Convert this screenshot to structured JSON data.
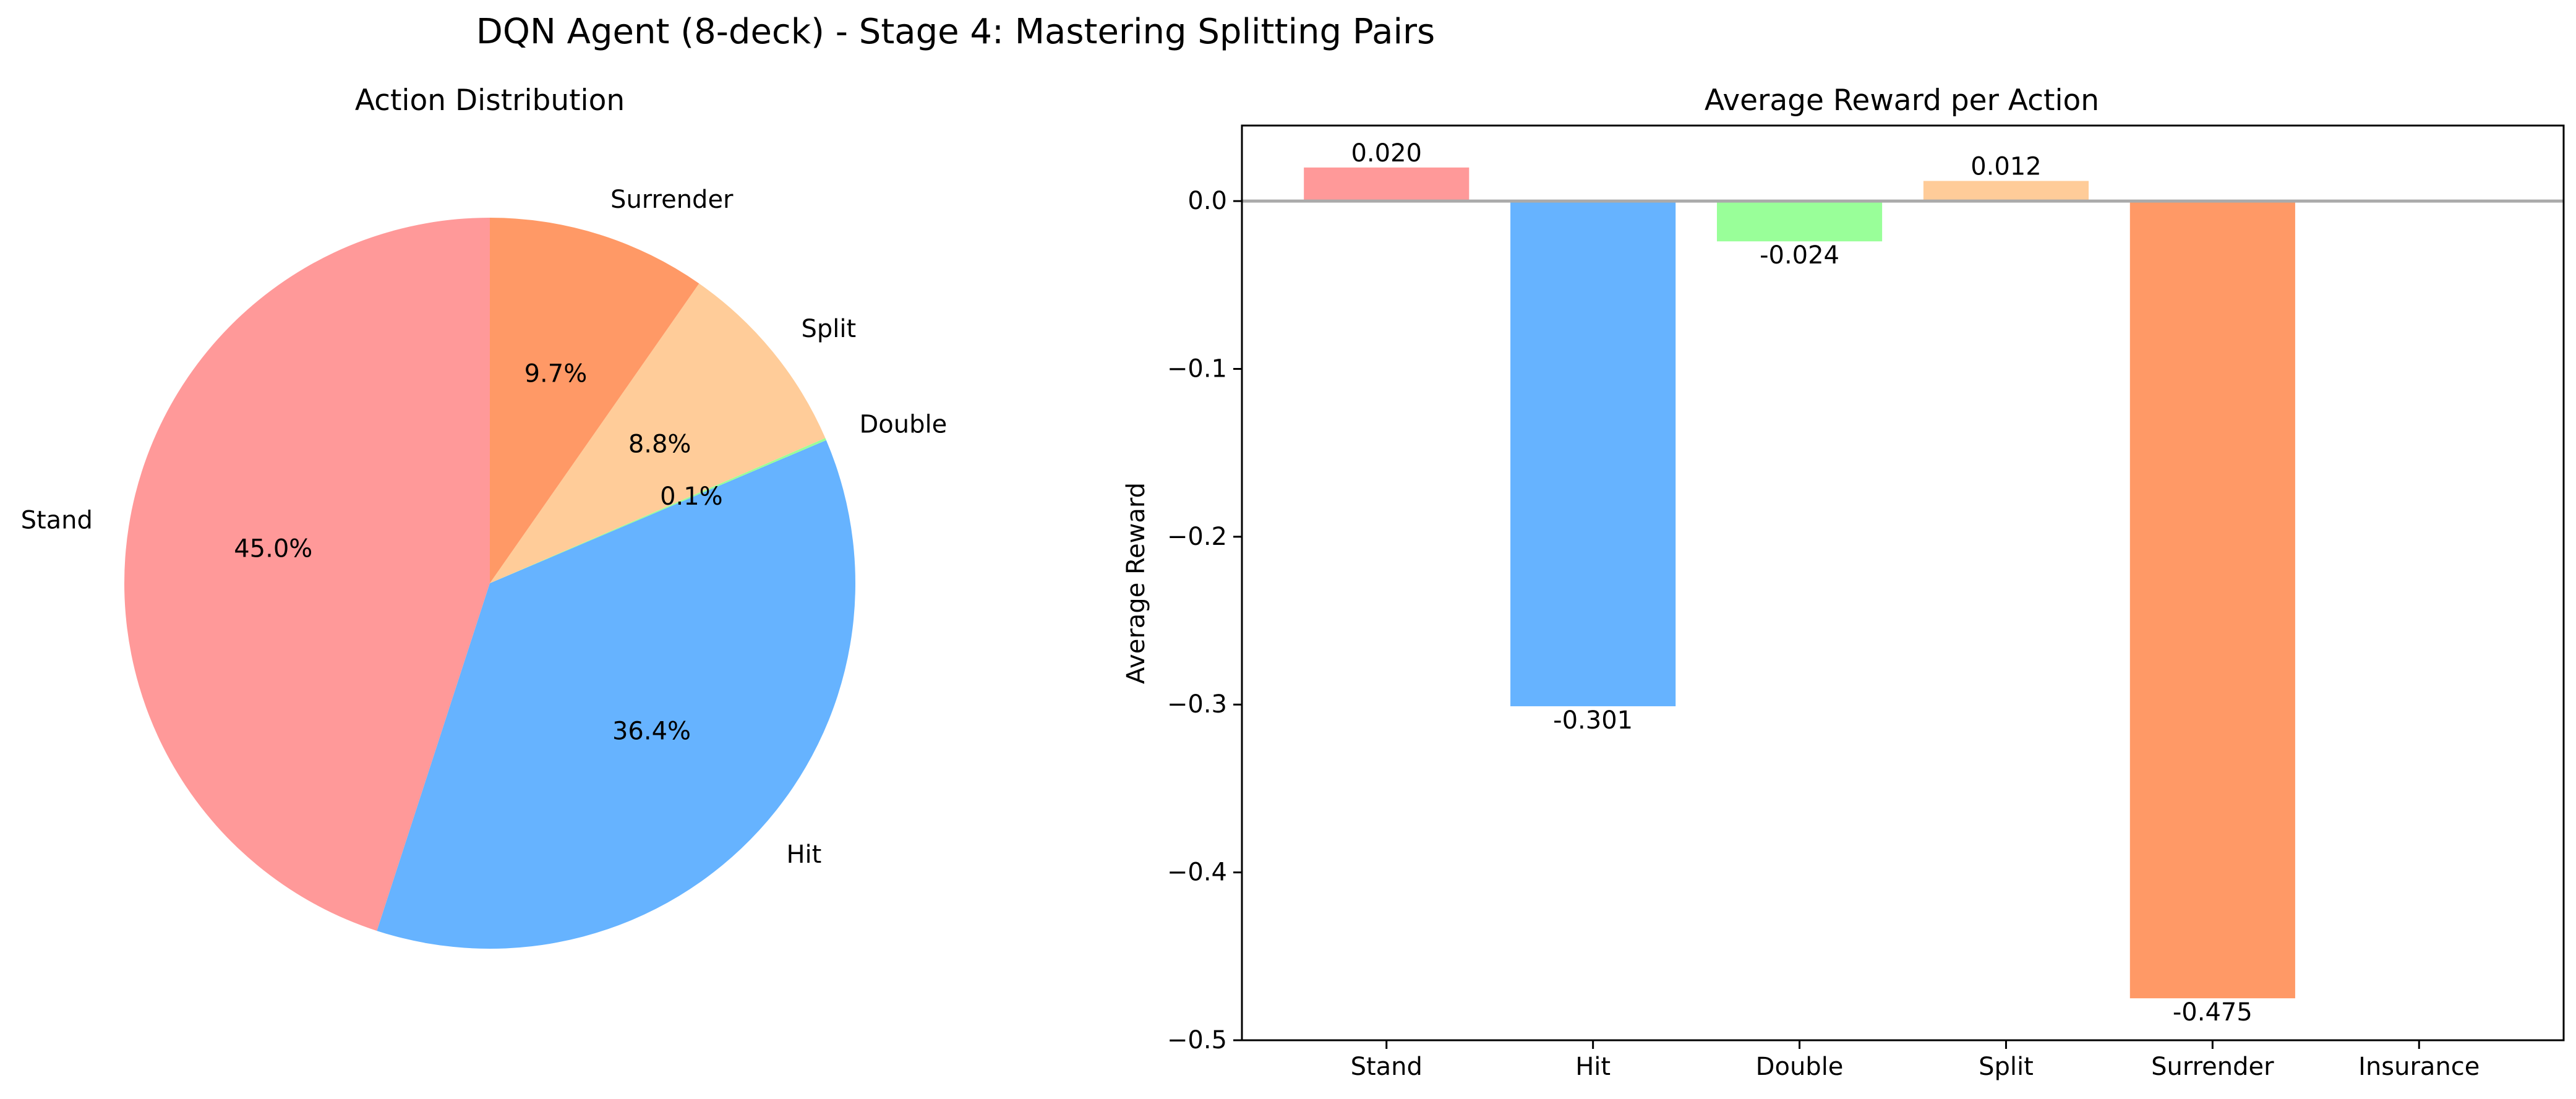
{
  "figure": {
    "title": "DQN Agent (8-deck) - Stage 4: Mastering Splitting Pairs"
  },
  "chart_data": [
    {
      "type": "pie",
      "title": "Action Distribution",
      "start_angle_deg": 90,
      "direction": "counterclockwise",
      "slices": [
        {
          "label": "Stand",
          "percent": 45.0,
          "pct_label": "45.0%",
          "color": "#ff9999"
        },
        {
          "label": "Hit",
          "percent": 36.4,
          "pct_label": "36.4%",
          "color": "#66b3ff"
        },
        {
          "label": "Double",
          "percent": 0.1,
          "pct_label": "0.1%",
          "color": "#99ff99"
        },
        {
          "label": "Split",
          "percent": 8.8,
          "pct_label": "8.8%",
          "color": "#ffcc99"
        },
        {
          "label": "Surrender",
          "percent": 9.7,
          "pct_label": "9.7%",
          "color": "#ff9966"
        }
      ]
    },
    {
      "type": "bar",
      "title": "Average Reward per Action",
      "xlabel": "",
      "ylabel": "Average Reward",
      "ylim": [
        -0.5,
        0.045
      ],
      "yticks": [
        {
          "value": 0.0,
          "label": "0.0"
        },
        {
          "value": -0.1,
          "label": "−0.1"
        },
        {
          "value": -0.2,
          "label": "−0.2"
        },
        {
          "value": -0.3,
          "label": "−0.3"
        },
        {
          "value": -0.4,
          "label": "−0.4"
        },
        {
          "value": -0.5,
          "label": "−0.5"
        }
      ],
      "zero_line_color": "#aaaaaa",
      "categories": [
        "Stand",
        "Hit",
        "Double",
        "Split",
        "Surrender",
        "Insurance"
      ],
      "values": [
        0.02,
        -0.301,
        -0.024,
        0.012,
        -0.475,
        null
      ],
      "value_labels": [
        "0.020",
        "-0.301",
        "-0.024",
        "0.012",
        "-0.475",
        ""
      ],
      "colors": [
        "#ff9999",
        "#66b3ff",
        "#99ff99",
        "#ffcc99",
        "#ff9966",
        "#c2c2f0"
      ]
    }
  ]
}
